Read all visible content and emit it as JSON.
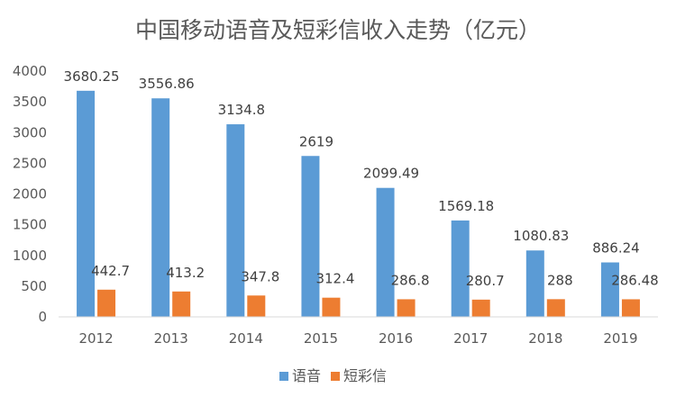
{
  "chart_data": {
    "type": "bar",
    "title": "中国移动语音及短彩信收入走势（亿元）",
    "categories": [
      "2012",
      "2013",
      "2014",
      "2015",
      "2016",
      "2017",
      "2018",
      "2019"
    ],
    "series": [
      {
        "name": "语音",
        "color": "#5b9bd5",
        "values": [
          3680.25,
          3556.86,
          3134.8,
          2619,
          2099.49,
          1569.18,
          1080.83,
          886.24
        ],
        "labels": [
          "3680.25",
          "3556.86",
          "3134.8",
          "2619",
          "2099.49",
          "1569.18",
          "1080.83",
          "886.24"
        ]
      },
      {
        "name": "短彩信",
        "color": "#ed7d31",
        "values": [
          442.7,
          413.2,
          347.8,
          312.4,
          286.8,
          280.7,
          288,
          286.48
        ],
        "labels": [
          "442.7",
          "413.2",
          "347.8",
          "312.4",
          "286.8",
          "280.7",
          "288",
          "286.48"
        ]
      }
    ],
    "ylim": [
      0,
      4000
    ],
    "yticks": [
      "0",
      "500",
      "1000",
      "1500",
      "2000",
      "2500",
      "3000",
      "3500",
      "4000"
    ],
    "grid": false,
    "legend": "bottom"
  }
}
